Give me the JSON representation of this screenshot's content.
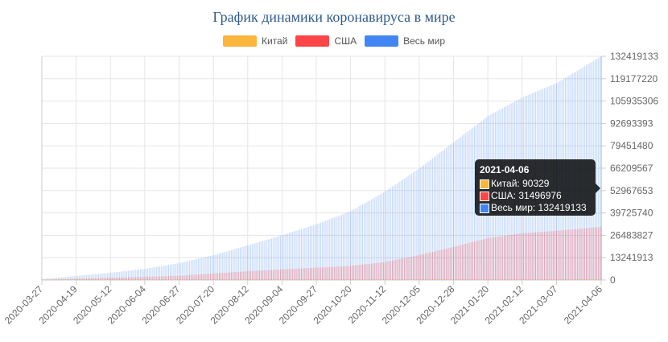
{
  "title": "График динамики коронавируса в мире",
  "colors": {
    "china": "#fbb63c",
    "usa": "#fb4546",
    "world": "#4286f3"
  },
  "tooltip": {
    "date": "2021-04-06",
    "rows": [
      {
        "key": "china",
        "text": "Китай: 90329"
      },
      {
        "key": "usa",
        "text": "США: 31496976"
      },
      {
        "key": "world",
        "text": "Весь мир: 132419133"
      }
    ]
  },
  "chart_data": {
    "type": "bar",
    "x_start": "2020-03-27",
    "x_end": "2021-04-06",
    "x_tick_labels": [
      "2020-03-27",
      "2020-04-19",
      "2020-05-12",
      "2020-06-04",
      "2020-06-27",
      "2020-07-20",
      "2020-08-12",
      "2020-09-04",
      "2020-09-27",
      "2020-10-20",
      "2020-11-12",
      "2020-12-05",
      "2020-12-28",
      "2021-01-20",
      "2021-02-12",
      "2021-03-07",
      "2021-04-06"
    ],
    "y_tick_labels": [
      "0",
      "13241913",
      "26483827",
      "39725740",
      "52967653",
      "66209567",
      "79451480",
      "92693393",
      "105935306",
      "119177220",
      "132419133"
    ],
    "ylim": [
      0,
      132419133
    ],
    "y_axis_position": "right",
    "grid": true,
    "legend_position": "top",
    "series": [
      {
        "name": "Китай",
        "key": "china",
        "points": [
          [
            "2020-03-27",
            81900
          ],
          [
            "2020-05-12",
            82900
          ],
          [
            "2020-08-12",
            84700
          ],
          [
            "2020-12-05",
            86600
          ],
          [
            "2021-04-06",
            90329
          ]
        ]
      },
      {
        "name": "США",
        "key": "usa",
        "points": [
          [
            "2020-03-27",
            100000
          ],
          [
            "2020-04-19",
            760000
          ],
          [
            "2020-05-12",
            1400000
          ],
          [
            "2020-06-04",
            1900000
          ],
          [
            "2020-06-27",
            2550000
          ],
          [
            "2020-07-20",
            3900000
          ],
          [
            "2020-08-12",
            5200000
          ],
          [
            "2020-09-04",
            6300000
          ],
          [
            "2020-09-27",
            7300000
          ],
          [
            "2020-10-20",
            8400000
          ],
          [
            "2020-11-12",
            10600000
          ],
          [
            "2020-12-05",
            14800000
          ],
          [
            "2020-12-28",
            19600000
          ],
          [
            "2021-01-20",
            24800000
          ],
          [
            "2021-02-12",
            27700000
          ],
          [
            "2021-03-07",
            29100000
          ],
          [
            "2021-04-06",
            31496976
          ]
        ]
      },
      {
        "name": "Весь мир",
        "key": "world",
        "points": [
          [
            "2020-03-27",
            590000
          ],
          [
            "2020-04-19",
            2400000
          ],
          [
            "2020-05-12",
            4300000
          ],
          [
            "2020-06-04",
            6600000
          ],
          [
            "2020-06-27",
            10000000
          ],
          [
            "2020-07-20",
            14700000
          ],
          [
            "2020-08-12",
            20500000
          ],
          [
            "2020-09-04",
            26500000
          ],
          [
            "2020-09-27",
            33000000
          ],
          [
            "2020-10-20",
            40700000
          ],
          [
            "2020-11-12",
            52300000
          ],
          [
            "2020-12-05",
            66000000
          ],
          [
            "2020-12-28",
            81500000
          ],
          [
            "2021-01-20",
            97000000
          ],
          [
            "2021-02-12",
            108000000
          ],
          [
            "2021-03-07",
            116500000
          ],
          [
            "2021-04-06",
            132419133
          ]
        ]
      }
    ]
  }
}
